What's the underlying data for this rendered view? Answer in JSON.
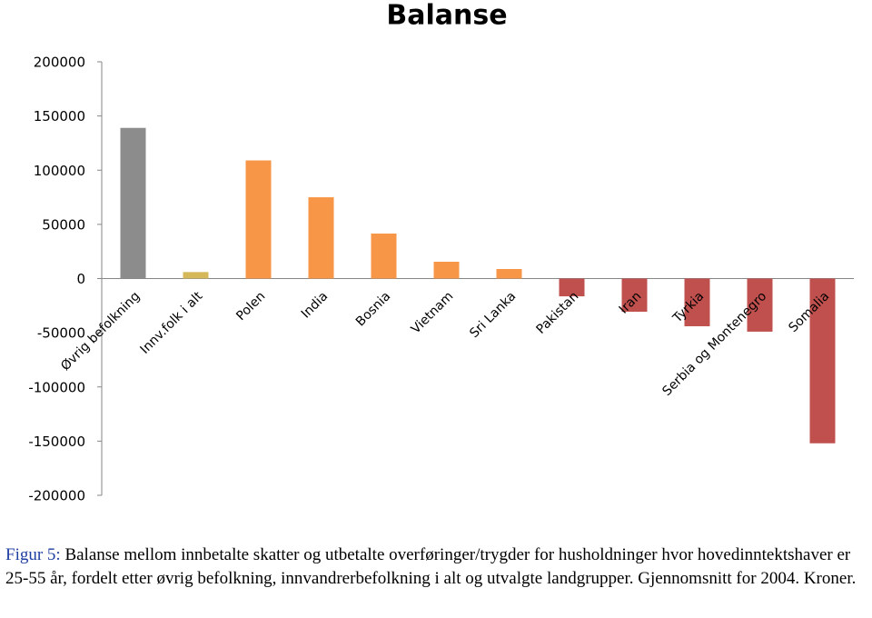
{
  "chart_data": {
    "type": "bar",
    "title": "Balanse",
    "categories": [
      "Øvrig befolkning",
      "Innv.folk i alt",
      "Polen",
      "India",
      "Bosnia",
      "Vietnam",
      "Sri Lanka",
      "Pakistan",
      "Iran",
      "Tyrkia",
      "Serbia og Montenegro",
      "Somalia"
    ],
    "values": [
      139000,
      6000,
      109000,
      75000,
      41500,
      15500,
      8800,
      -16400,
      -30600,
      -44000,
      -49000,
      -152000
    ],
    "colors": [
      "#8c8c8c",
      "#d4b85a",
      "#f79646",
      "#f79646",
      "#f79646",
      "#f79646",
      "#f79646",
      "#c0504d",
      "#c0504d",
      "#c0504d",
      "#c0504d",
      "#c0504d"
    ],
    "ylim": [
      -200000,
      200000
    ],
    "yticks": [
      -200000,
      -150000,
      -100000,
      -50000,
      0,
      50000,
      100000,
      150000,
      200000
    ],
    "caption_label": "Figur 5:",
    "caption": "Balanse mellom innbetalte skatter og utbetalte overføringer/trygder for husholdninger hvor hovedinntektshaver er 25-55 år, fordelt etter øvrig befolkning, innvandrerbefolkning i alt og utvalgte landgrupper. Gjennomsnitt for 2004. Kroner."
  }
}
